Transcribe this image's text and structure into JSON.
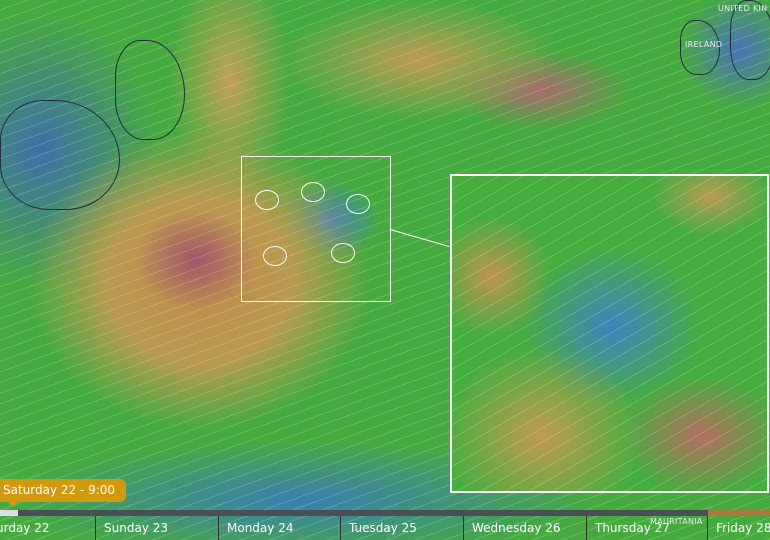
{
  "map": {
    "labels": {
      "uk": "UNITED KIN",
      "ireland": "IRELAND",
      "mauritania": "MAURITANIA"
    }
  },
  "timeline": {
    "current_time": "Saturday 22 - 9:00",
    "progress_percent": 0.6,
    "days": [
      "urday 22",
      "Sunday 23",
      "Monday 24",
      "Tuesday 25",
      "Wednesday 26",
      "Thursday 27",
      "Friday 28"
    ]
  },
  "colors": {
    "badge": "#d19a0e",
    "bar": "#4a4f55"
  }
}
